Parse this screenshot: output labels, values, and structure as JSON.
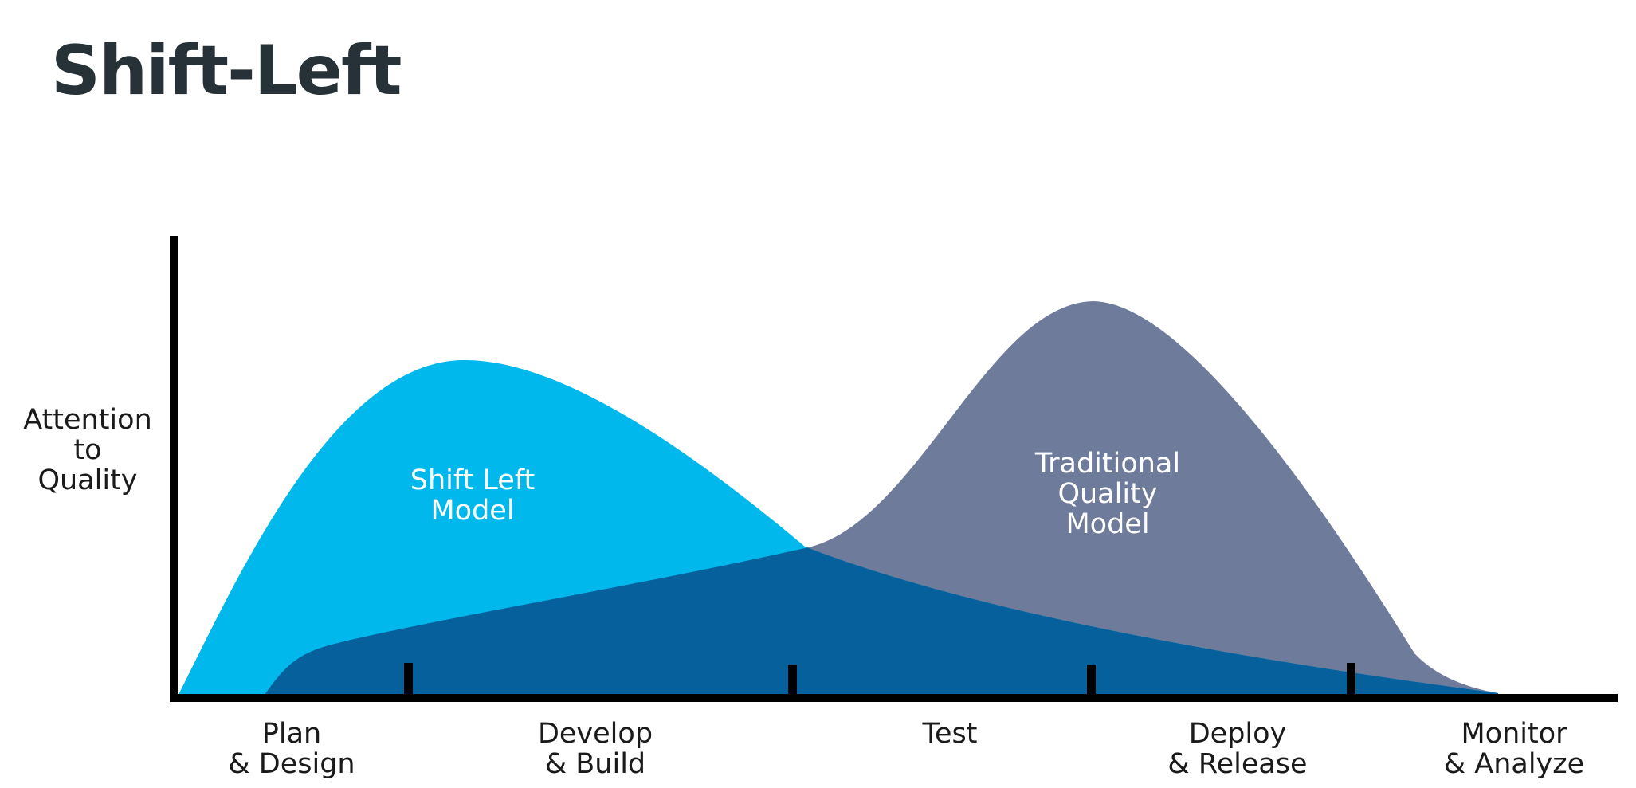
{
  "title": "Shift-Left",
  "y_axis_label": [
    "Attention",
    "to",
    "Quality"
  ],
  "curves": [
    {
      "name": "shift_left",
      "label_lines": [
        "Shift Left",
        "Model"
      ],
      "color": "#00b8ec"
    },
    {
      "name": "traditional",
      "label_lines": [
        "Traditional",
        "Quality",
        "Model"
      ],
      "color": "#6f7b9a"
    }
  ],
  "overlap_color": "#05609b",
  "axis_color": "#000000",
  "stages": [
    {
      "lines": [
        "Plan",
        "& Design"
      ]
    },
    {
      "lines": [
        "Develop",
        "& Build"
      ]
    },
    {
      "lines": [
        "Test"
      ]
    },
    {
      "lines": [
        "Deploy",
        "& Release"
      ]
    },
    {
      "lines": [
        "Monitor",
        "& Analyze"
      ]
    }
  ]
}
